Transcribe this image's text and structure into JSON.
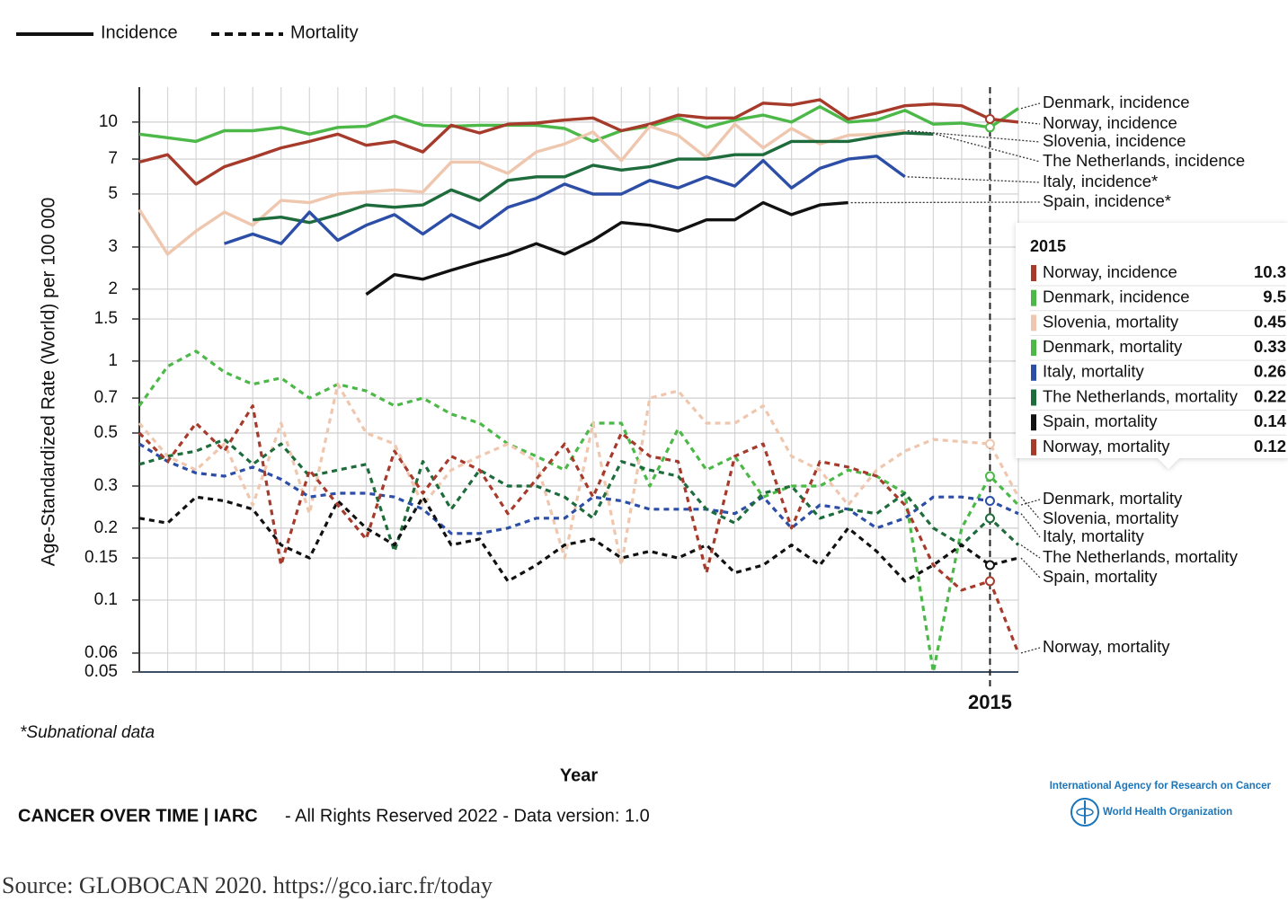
{
  "chart_data": {
    "type": "line",
    "y_label": "Age-Standardized Rate (World) per 100 000",
    "x_label": "Year",
    "log_scale": true,
    "grid": true,
    "line_styles": [
      {
        "label": "Incidence",
        "style": "solid"
      },
      {
        "label": "Mortality",
        "style": "dashed"
      }
    ],
    "x": [
      1985,
      1986,
      1987,
      1988,
      1989,
      1990,
      1991,
      1992,
      1993,
      1994,
      1995,
      1996,
      1997,
      1998,
      1999,
      2000,
      2001,
      2002,
      2003,
      2004,
      2005,
      2006,
      2007,
      2008,
      2009,
      2010,
      2011,
      2012,
      2013,
      2014,
      2015,
      2016
    ],
    "xlim": [
      1985,
      2016
    ],
    "xticks": [
      2015
    ],
    "ylim": [
      0.05,
      14
    ],
    "yticks": [
      0.05,
      0.06,
      0.1,
      0.15,
      0.2,
      0.3,
      0.5,
      0.7,
      1,
      1.5,
      2,
      3,
      5,
      7,
      10
    ],
    "series": [
      {
        "name": "Denmark, incidence",
        "color": "#4cb848",
        "style": "solid",
        "values": [
          8.9,
          8.6,
          8.3,
          9.2,
          9.2,
          9.5,
          8.9,
          9.5,
          9.6,
          10.6,
          9.7,
          9.6,
          9.7,
          9.7,
          9.7,
          9.4,
          8.3,
          9.2,
          9.6,
          10.4,
          9.5,
          10.2,
          10.7,
          10.0,
          11.6,
          10.0,
          10.2,
          11.2,
          9.8,
          9.9,
          9.5,
          11.4
        ]
      },
      {
        "name": "Norway, incidence",
        "color": "#a63a2b",
        "style": "solid",
        "values": [
          6.8,
          7.3,
          5.5,
          6.5,
          7.1,
          7.8,
          8.3,
          8.9,
          8.0,
          8.3,
          7.5,
          9.7,
          9.0,
          9.8,
          9.9,
          10.2,
          10.4,
          9.2,
          9.8,
          10.7,
          10.4,
          10.4,
          12.0,
          11.8,
          12.4,
          10.3,
          10.9,
          11.7,
          11.9,
          11.7,
          10.3,
          10.0
        ]
      },
      {
        "name": "Slovenia, incidence",
        "color": "#efc6ae",
        "style": "solid",
        "values": [
          4.3,
          2.8,
          3.5,
          4.2,
          3.7,
          4.7,
          4.6,
          5.0,
          5.1,
          5.2,
          5.1,
          6.8,
          6.8,
          6.1,
          7.5,
          8.1,
          9.1,
          6.9,
          9.6,
          8.8,
          7.1,
          9.8,
          7.8,
          9.4,
          8.1,
          8.8,
          8.9,
          9.2,
          null,
          null,
          null,
          null
        ]
      },
      {
        "name": "The Netherlands, incidence",
        "color": "#1e6b3c",
        "style": "solid",
        "values": [
          null,
          null,
          null,
          null,
          3.9,
          4.0,
          3.8,
          4.1,
          4.5,
          4.4,
          4.5,
          5.2,
          4.7,
          5.7,
          5.9,
          5.9,
          6.6,
          6.3,
          6.5,
          7.0,
          7.0,
          7.3,
          7.3,
          8.3,
          8.3,
          8.3,
          8.7,
          9.0,
          8.9,
          null,
          null,
          null
        ]
      },
      {
        "name": "Italy, incidence*",
        "color": "#2c4ea6",
        "style": "solid",
        "values": [
          null,
          null,
          null,
          3.1,
          3.4,
          3.1,
          4.2,
          3.2,
          3.7,
          4.1,
          3.4,
          4.1,
          3.6,
          4.4,
          4.8,
          5.5,
          5.0,
          5.0,
          5.7,
          5.3,
          5.9,
          5.4,
          6.9,
          5.3,
          6.4,
          7.0,
          7.2,
          5.9,
          null,
          null,
          null,
          null
        ]
      },
      {
        "name": "Spain, incidence*",
        "color": "#111111",
        "style": "solid",
        "values": [
          null,
          null,
          null,
          null,
          null,
          null,
          null,
          null,
          1.9,
          2.3,
          2.2,
          2.4,
          2.6,
          2.8,
          3.1,
          2.8,
          3.2,
          3.8,
          3.7,
          3.5,
          3.9,
          3.9,
          4.6,
          4.1,
          4.5,
          4.6,
          null,
          null,
          null,
          null,
          null,
          null
        ]
      },
      {
        "name": "Denmark, mortality",
        "color": "#4cb848",
        "style": "dashed",
        "values": [
          0.65,
          0.95,
          1.1,
          0.9,
          0.8,
          0.85,
          0.7,
          0.8,
          0.75,
          0.65,
          0.7,
          0.6,
          0.55,
          0.45,
          0.4,
          0.35,
          0.55,
          0.55,
          0.3,
          0.52,
          0.35,
          0.4,
          0.27,
          0.3,
          0.3,
          0.35,
          0.33,
          0.28,
          0.05,
          0.2,
          0.33,
          0.25
        ]
      },
      {
        "name": "Slovenia, mortality",
        "color": "#efc6ae",
        "style": "dashed",
        "values": [
          0.55,
          0.4,
          0.35,
          0.45,
          0.25,
          0.55,
          0.23,
          0.8,
          0.5,
          0.45,
          0.25,
          0.35,
          0.4,
          0.45,
          0.38,
          0.15,
          0.55,
          0.14,
          0.7,
          0.75,
          0.55,
          0.55,
          0.65,
          0.4,
          0.35,
          0.25,
          0.35,
          0.42,
          0.47,
          0.46,
          0.45,
          0.27
        ]
      },
      {
        "name": "Italy, mortality",
        "color": "#2c4ea6",
        "style": "dashed",
        "values": [
          0.45,
          0.38,
          0.34,
          0.33,
          0.36,
          0.32,
          0.27,
          0.28,
          0.28,
          0.27,
          0.24,
          0.19,
          0.19,
          0.2,
          0.22,
          0.22,
          0.27,
          0.26,
          0.24,
          0.24,
          0.24,
          0.23,
          0.27,
          0.2,
          0.25,
          0.24,
          0.2,
          0.22,
          0.27,
          0.27,
          0.26,
          0.23
        ]
      },
      {
        "name": "The Netherlands, mortality",
        "color": "#1e6b3c",
        "style": "dashed",
        "values": [
          0.37,
          0.4,
          0.42,
          0.47,
          0.37,
          0.45,
          0.33,
          0.35,
          0.37,
          0.16,
          0.38,
          0.24,
          0.35,
          0.3,
          0.3,
          0.27,
          0.22,
          0.38,
          0.35,
          0.33,
          0.24,
          0.21,
          0.28,
          0.3,
          0.22,
          0.24,
          0.23,
          0.28,
          0.2,
          0.17,
          0.22,
          0.17
        ]
      },
      {
        "name": "Spain, mortality",
        "color": "#111111",
        "style": "dashed",
        "values": [
          0.22,
          0.21,
          0.27,
          0.26,
          0.24,
          0.17,
          0.15,
          0.26,
          0.2,
          0.17,
          0.27,
          0.17,
          0.18,
          0.12,
          0.14,
          0.17,
          0.18,
          0.15,
          0.16,
          0.15,
          0.17,
          0.13,
          0.14,
          0.17,
          0.14,
          0.2,
          0.16,
          0.12,
          0.14,
          0.17,
          0.14,
          0.15
        ]
      },
      {
        "name": "Norway, mortality",
        "color": "#a63a2b",
        "style": "dashed",
        "values": [
          0.5,
          0.38,
          0.55,
          0.42,
          0.65,
          0.14,
          0.35,
          0.25,
          0.18,
          0.42,
          0.28,
          0.4,
          0.35,
          0.23,
          0.32,
          0.45,
          0.27,
          0.5,
          0.4,
          0.38,
          0.13,
          0.4,
          0.45,
          0.2,
          0.38,
          0.36,
          0.33,
          0.25,
          0.14,
          0.11,
          0.12,
          0.06
        ]
      }
    ],
    "note": "*Subnational data",
    "footer_brand": "CANCER OVER TIME | IARC",
    "footer_text": "- All Rights Reserved 2022 - Data version: 1.0",
    "logo_agency": "International Agency for Research on Cancer",
    "logo_org": "World Health Organization",
    "source": "Source: GLOBOCAN 2020. https://gco.iarc.fr/today"
  }
}
